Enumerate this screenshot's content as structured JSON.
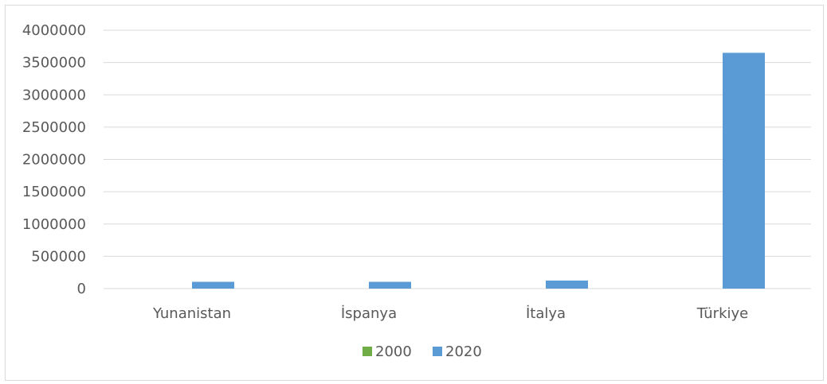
{
  "chart_data": {
    "type": "bar",
    "title": "",
    "xlabel": "",
    "ylabel": "",
    "categories": [
      "Yunanistan",
      "İspanya",
      "İtalya",
      "Türkiye"
    ],
    "series": [
      {
        "name": "2000",
        "color": "#70ad47",
        "values": [
          0,
          0,
          0,
          0
        ]
      },
      {
        "name": "2020",
        "color": "#5b9bd5",
        "values": [
          105000,
          105000,
          125000,
          3650000
        ]
      }
    ],
    "ylim": [
      0,
      4000000
    ],
    "yticks": [
      "0",
      "500000",
      "1000000",
      "1500000",
      "2000000",
      "2500000",
      "3000000",
      "3500000",
      "4000000"
    ],
    "grid": true,
    "legend_position": "bottom"
  }
}
